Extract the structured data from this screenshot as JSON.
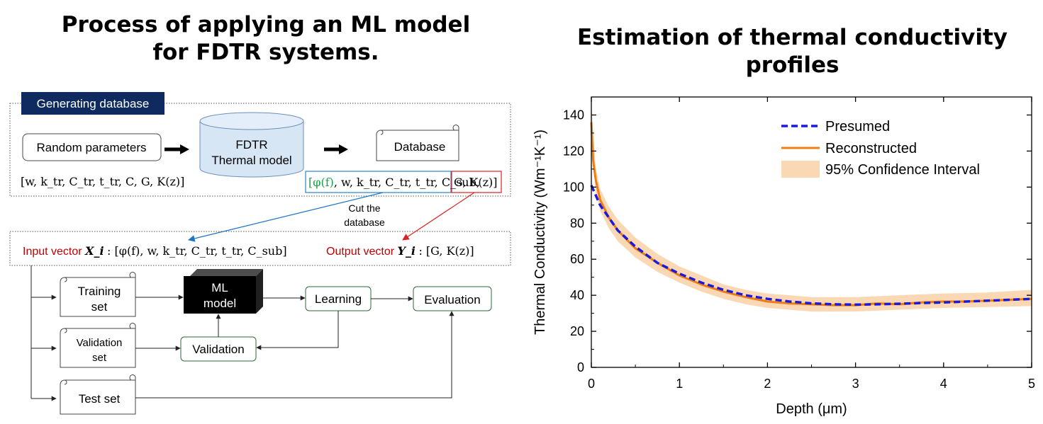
{
  "left": {
    "title_line1": "Process of applying an ML model",
    "title_line2": "for FDTR systems.",
    "gen_label": "Generating database",
    "random_params": "Random parameters",
    "random_vector": "[w, k_tr, C_tr, t_tr, C, G, K(z)]",
    "fdtr_line1": "FDTR",
    "fdtr_line2": "Thermal model",
    "database": "Database",
    "db_vector_phi": "[φ(f)",
    "db_vector_mid": ", w, k_tr, C_tr, t_tr, C_sub,",
    "db_vector_right": "G, K(z)]",
    "cut_line1": "Cut the",
    "cut_line2": "database",
    "input_label": "Input vector",
    "input_sym": "X_i",
    "input_vec": ": [φ(f), w, k_tr, C_tr, t_tr, C_sub]",
    "output_label": "Output vector",
    "output_sym": "Y_i",
    "output_vec": ": [G, K(z)]",
    "training_line1": "Training",
    "training_line2": "set",
    "validation_set_line1": "Validation",
    "validation_set_line2": "set",
    "test_set": "Test set",
    "ml_line1": "ML",
    "ml_line2": "model",
    "learning": "Learning",
    "validation": "Validation",
    "evaluation": "Evaluation"
  },
  "right": {
    "title": "Estimation of thermal conductivity profiles"
  },
  "chart_data": {
    "type": "line",
    "xlabel": "Depth (μm)",
    "ylabel": "Thermal Conductivity (Wm⁻¹K⁻¹)",
    "xlim": [
      0,
      5
    ],
    "ylim": [
      0,
      150
    ],
    "xticks": [
      0,
      1,
      2,
      3,
      4,
      5
    ],
    "yticks": [
      0,
      20,
      40,
      60,
      80,
      100,
      120,
      140
    ],
    "legend_position": "top-right",
    "colors": {
      "presumed": "#1a1adc",
      "reconstructed": "#f07d10",
      "band": "#fbd8b4"
    },
    "series": [
      {
        "name": "Presumed",
        "style": "dashed",
        "x": [
          0,
          0.1,
          0.2,
          0.3,
          0.5,
          0.75,
          1.0,
          1.25,
          1.5,
          1.75,
          2.0,
          2.25,
          2.5,
          2.75,
          3.0,
          3.25,
          3.5,
          3.75,
          4.0,
          4.25,
          4.5,
          4.75,
          5.0
        ],
        "y": [
          101,
          90,
          83,
          76,
          67,
          58,
          52,
          47,
          43,
          40,
          38,
          36.5,
          35.5,
          35,
          34.8,
          35,
          35.3,
          35.7,
          36,
          36.5,
          37,
          37.5,
          38
        ]
      },
      {
        "name": "Reconstructed",
        "style": "solid",
        "x": [
          0,
          0.02,
          0.05,
          0.1,
          0.2,
          0.3,
          0.5,
          0.75,
          1.0,
          1.25,
          1.5,
          1.75,
          2.0,
          2.25,
          2.5,
          2.75,
          3.0,
          3.25,
          3.5,
          3.75,
          4.0,
          4.25,
          4.5,
          4.75,
          5.0
        ],
        "y": [
          136,
          115,
          104,
          93,
          83,
          76,
          66,
          58,
          51,
          46,
          42,
          39,
          36.5,
          35.5,
          35,
          34.5,
          34.5,
          35.5,
          35,
          36,
          36.5,
          36.5,
          37,
          37.5,
          38
        ]
      },
      {
        "name": "95% Confidence Interval",
        "style": "band",
        "x": [
          0,
          0.05,
          0.1,
          0.2,
          0.3,
          0.5,
          0.75,
          1.0,
          1.25,
          1.5,
          1.75,
          2.0,
          2.5,
          3.0,
          3.5,
          4.0,
          4.5,
          5.0
        ],
        "lower": [
          125,
          97,
          87,
          77,
          70,
          61,
          53,
          47,
          42,
          38,
          35,
          33,
          31,
          31,
          32,
          33,
          33.5,
          34
        ],
        "upper": [
          146,
          111,
          99,
          89,
          82,
          72,
          63,
          56,
          51,
          46,
          43,
          41,
          39,
          39,
          40,
          41,
          41.5,
          43
        ]
      }
    ]
  }
}
